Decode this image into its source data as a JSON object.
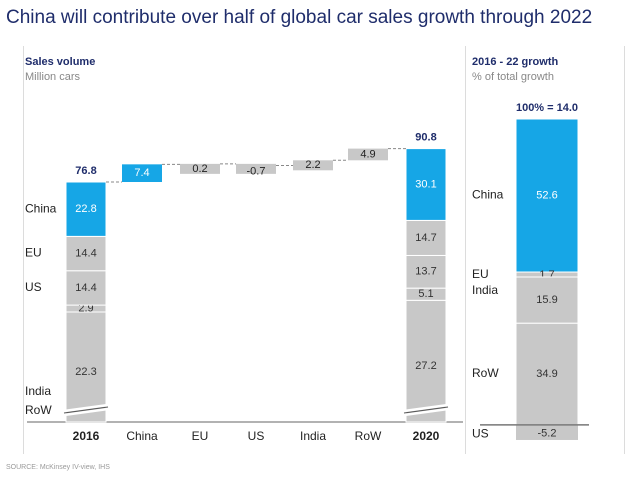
{
  "title": "China will contribute over half of global car sales growth through 2022",
  "source": "SOURCE: McKinsey IV-view, IHS",
  "colors": {
    "china": "#16a6e6",
    "grey": "#c8c8c8",
    "title": "#1f2d6b",
    "panel_border": "#dcdcdc"
  },
  "chart_data": [
    {
      "type": "bar",
      "subtype": "waterfall",
      "header": "Sales volume",
      "unit_label": "Million cars",
      "categories": [
        "2016",
        "China",
        "EU",
        "US",
        "India",
        "RoW",
        "2020"
      ],
      "stack_labels": [
        "China",
        "EU",
        "US",
        "India",
        "RoW"
      ],
      "totals": [
        {
          "category": "2016",
          "total": 76.8,
          "total_label": "76.8",
          "segments": [
            {
              "name": "China",
              "value": 22.8,
              "label": "22.8"
            },
            {
              "name": "EU",
              "value": 14.4,
              "label": "14.4"
            },
            {
              "name": "US",
              "value": 14.4,
              "label": "14.4"
            },
            {
              "name": "India",
              "value": 2.9,
              "label": "2.9"
            },
            {
              "name": "RoW",
              "value": 22.3,
              "label": "22.3"
            }
          ]
        },
        {
          "category": "2020",
          "total": 90.8,
          "total_label": "90.8",
          "segments": [
            {
              "name": "China",
              "value": 30.1,
              "label": "30.1"
            },
            {
              "name": "EU",
              "value": 14.7,
              "label": "14.7"
            },
            {
              "name": "US",
              "value": 13.7,
              "label": "13.7"
            },
            {
              "name": "India",
              "value": 5.1,
              "label": "5.1"
            },
            {
              "name": "RoW",
              "value": 27.2,
              "label": "27.2"
            }
          ]
        }
      ],
      "changes": [
        {
          "category": "China",
          "value": 7.4,
          "label": "7.4"
        },
        {
          "category": "EU",
          "value": 0.2,
          "label": "0.2"
        },
        {
          "category": "US",
          "value": -0.7,
          "label": "-0.7"
        },
        {
          "category": "India",
          "value": 2.2,
          "label": "2.2"
        },
        {
          "category": "RoW",
          "value": 4.9,
          "label": "4.9"
        }
      ],
      "axis_break": true,
      "grid": false
    },
    {
      "type": "bar",
      "subtype": "stacked-100",
      "header": "2016 - 22 growth",
      "unit_label": "% of total growth",
      "total_label": "100% = 14.0",
      "segments": [
        {
          "name": "China",
          "value": 52.6,
          "label": "52.6"
        },
        {
          "name": "EU",
          "value": 1.7,
          "label": "1.7"
        },
        {
          "name": "India",
          "value": 15.9,
          "label": "15.9"
        },
        {
          "name": "RoW",
          "value": 34.9,
          "label": "34.9"
        },
        {
          "name": "US",
          "value": -5.2,
          "label": "-5.2"
        }
      ]
    }
  ]
}
